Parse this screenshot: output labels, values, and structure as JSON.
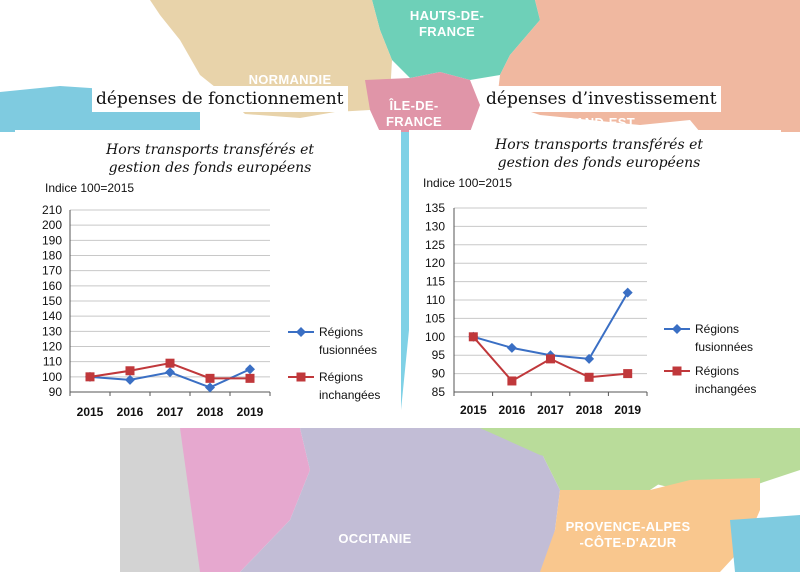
{
  "map": {
    "region_labels": {
      "hauts_de_france": [
        "HAUTS-DE-",
        "FRANCE"
      ],
      "normandie": [
        "NORMANDIE"
      ],
      "ile_de_france": [
        "ÎLE-DE-",
        "FRANCE"
      ],
      "grand_est": [
        "GRAND-EST"
      ],
      "occitanie": [
        "OCCITANIE"
      ],
      "paca": [
        "PROVENCE-ALPES",
        "-CÔTE-D'AZUR"
      ]
    }
  },
  "headers": {
    "left": "dépenses de fonctionnement",
    "right": "dépenses d’investissement"
  },
  "colors": {
    "fusionnees": "#3a6fc4",
    "inchangees": "#c0383b"
  },
  "chart_data": [
    {
      "type": "line",
      "title": "Hors transports transférés et gestion des fonds européens",
      "title_lines": [
        "Hors transports transférés et",
        "gestion des fonds européens"
      ],
      "ylabel": "Indice 100=2015",
      "x": [
        "2015",
        "2016",
        "2017",
        "2018",
        "2019"
      ],
      "ylim": [
        90,
        210
      ],
      "yticks": [
        90,
        100,
        110,
        120,
        130,
        140,
        150,
        160,
        170,
        180,
        190,
        200,
        210
      ],
      "grid": true,
      "legend_position": "right",
      "series": [
        {
          "name": "Régions fusionnées",
          "name_lines": [
            "Régions",
            "fusionnées"
          ],
          "color": "#3a6fc4",
          "marker": "diamond",
          "values": [
            100,
            98,
            103,
            93,
            105
          ]
        },
        {
          "name": "Régions inchangées",
          "name_lines": [
            "Régions",
            "inchangées"
          ],
          "color": "#c0383b",
          "marker": "square",
          "values": [
            100,
            104,
            109,
            99,
            99
          ]
        }
      ]
    },
    {
      "type": "line",
      "title": "Hors transports transférés et gestion des fonds européens",
      "title_lines": [
        "Hors transports transférés et",
        "gestion des fonds européens"
      ],
      "ylabel": "Indice 100=2015",
      "x": [
        "2015",
        "2016",
        "2017",
        "2018",
        "2019"
      ],
      "ylim": [
        85,
        135
      ],
      "yticks": [
        85,
        90,
        95,
        100,
        105,
        110,
        115,
        120,
        125,
        130,
        135
      ],
      "grid": true,
      "legend_position": "right",
      "series": [
        {
          "name": "Régions fusionnées",
          "name_lines": [
            "Régions",
            "fusionnées"
          ],
          "color": "#3a6fc4",
          "marker": "diamond",
          "values": [
            100,
            97,
            95,
            94,
            112
          ]
        },
        {
          "name": "Régions inchangées",
          "name_lines": [
            "Régions",
            "inchangées"
          ],
          "color": "#c0383b",
          "marker": "square",
          "values": [
            100,
            88,
            94,
            89,
            90
          ]
        }
      ]
    }
  ]
}
